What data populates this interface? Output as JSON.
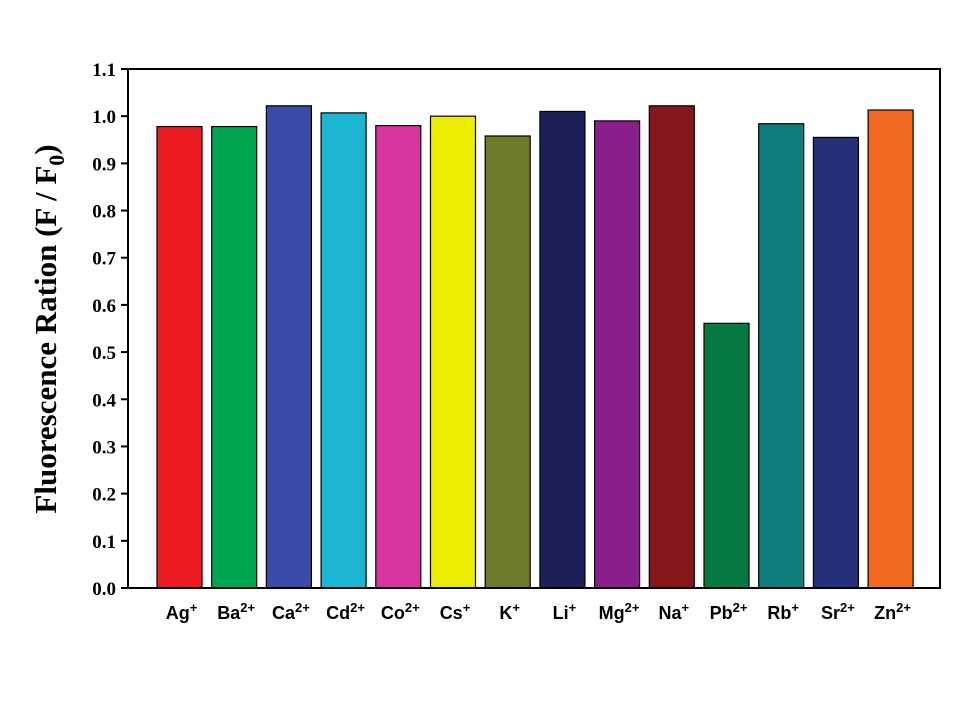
{
  "chart_data": {
    "type": "bar",
    "title": "",
    "xlabel": "",
    "ylabel": "Fluorescence Ration (F / F0)",
    "ylabel_parts": {
      "main": "Fluorescence Ration (F / F",
      "sub": "0",
      "end": ")"
    },
    "ylim": [
      0.0,
      1.1
    ],
    "yticks": [
      "0.0",
      "0.1",
      "0.2",
      "0.3",
      "0.4",
      "0.5",
      "0.6",
      "0.7",
      "0.8",
      "0.9",
      "1.0",
      "1.1"
    ],
    "grid": false,
    "legend": "none",
    "categories": [
      {
        "label": "Ag",
        "charge": "+"
      },
      {
        "label": "Ba",
        "charge": "2+"
      },
      {
        "label": "Ca",
        "charge": "2+"
      },
      {
        "label": "Cd",
        "charge": "2+"
      },
      {
        "label": "Co",
        "charge": "2+"
      },
      {
        "label": "Cs",
        "charge": "+"
      },
      {
        "label": "K",
        "charge": "+"
      },
      {
        "label": "Li",
        "charge": "+"
      },
      {
        "label": "Mg",
        "charge": "2+"
      },
      {
        "label": "Na",
        "charge": "+"
      },
      {
        "label": "Pb",
        "charge": "2+"
      },
      {
        "label": "Rb",
        "charge": "+"
      },
      {
        "label": "Sr",
        "charge": "2+"
      },
      {
        "label": "Zn",
        "charge": "2+"
      }
    ],
    "values": [
      0.978,
      0.978,
      1.022,
      1.007,
      0.98,
      1.0,
      0.958,
      1.01,
      0.99,
      1.022,
      0.561,
      0.984,
      0.955,
      1.013
    ],
    "colors": [
      "#ed1c24",
      "#00a651",
      "#3a4ba8",
      "#1cb5d2",
      "#d9359e",
      "#eeec00",
      "#6f7a2a",
      "#1b2157",
      "#8a1e8a",
      "#861719",
      "#077a43",
      "#0f7d7d",
      "#262f7a",
      "#f26922"
    ]
  }
}
